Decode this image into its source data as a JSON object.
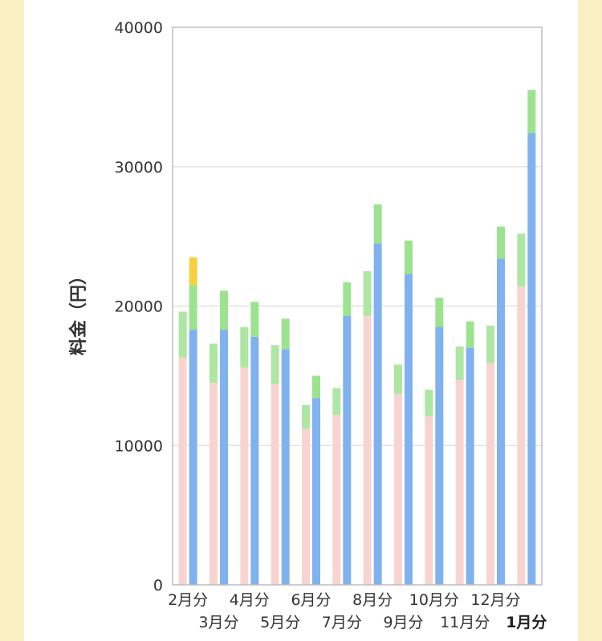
{
  "chart_data": {
    "type": "bar",
    "stacked": true,
    "ylabel": "料金（円）",
    "ylim": [
      0,
      40000
    ],
    "yticks": [
      0,
      10000,
      20000,
      30000,
      40000
    ],
    "grid": true,
    "categories": [
      "2月分",
      "3月分",
      "4月分",
      "5月分",
      "6月分",
      "7月分",
      "8月分",
      "9月分",
      "10月分",
      "11月分",
      "12月分",
      "1月分"
    ],
    "highlight_category": "1月分",
    "groups": [
      {
        "segments": [
          {
            "color": "#f8d4d1",
            "values": [
              16300,
              14500,
              15600,
              14400,
              11200,
              12200,
              19300,
              13700,
              12100,
              14700,
              15900,
              21400
            ]
          },
          {
            "color": "#aee6a3",
            "values": [
              3300,
              2800,
              2900,
              2800,
              1700,
              1900,
              3200,
              2100,
              1900,
              2400,
              2700,
              3800
            ]
          }
        ]
      },
      {
        "segments": [
          {
            "color": "#7fb2ee",
            "values": [
              18300,
              18300,
              17800,
              16900,
              13400,
              19300,
              24500,
              22300,
              18500,
              17000,
              23400,
              32400
            ]
          },
          {
            "color": "#9de38f",
            "values": [
              3200,
              2800,
              2500,
              2200,
              1600,
              2400,
              2800,
              2400,
              2100,
              1900,
              2300,
              3100
            ]
          },
          {
            "color": "#f8cf3e",
            "values": [
              2000,
              0,
              0,
              0,
              0,
              0,
              0,
              0,
              0,
              0,
              0,
              0
            ]
          }
        ]
      }
    ]
  }
}
